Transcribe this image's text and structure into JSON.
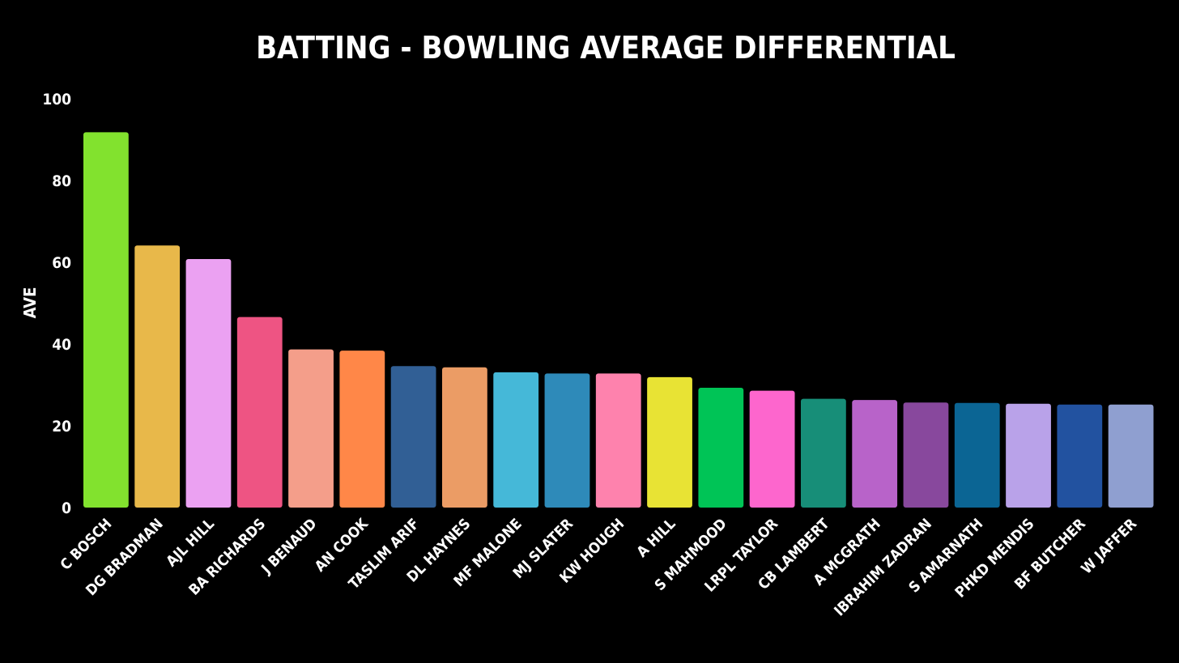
{
  "chart_data": {
    "type": "bar",
    "title": "BATTING - BOWLING AVERAGE DIFFERENTIAL",
    "xlabel": "",
    "ylabel": "AVE",
    "ylim": [
      0,
      100
    ],
    "yticks": [
      0,
      20,
      40,
      60,
      80,
      100
    ],
    "grid": false,
    "categories": [
      "C BOSCH",
      "DG BRADMAN",
      "AJL HILL",
      "BA RICHARDS",
      "J BENAUD",
      "AN COOK",
      "TASLIM ARIF",
      "DL HAYNES",
      "MF MALONE",
      "MJ SLATER",
      "KW HOUGH",
      "A HILL",
      "S MAHMOOD",
      "LRPL TAYLOR",
      "CB LAMBERT",
      "A MCGRATH",
      "IBRAHIM ZADRAN",
      "S AMARNATH",
      "PHKD MENDIS",
      "BF BUTCHER",
      "W JAFFER"
    ],
    "values": [
      91.8,
      64.1,
      60.8,
      46.6,
      38.7,
      38.4,
      34.6,
      34.3,
      33.1,
      32.8,
      32.8,
      31.9,
      29.3,
      28.6,
      26.6,
      26.3,
      25.7,
      25.6,
      25.4,
      25.2,
      25.2
    ],
    "colors": [
      "#82e22e",
      "#e8b84a",
      "#eba1f2",
      "#ee5483",
      "#f49e8a",
      "#ff8748",
      "#315f95",
      "#eb9c65",
      "#45b8d8",
      "#2e8ab9",
      "#fe82ad",
      "#e8e334",
      "#00c456",
      "#fd66cd",
      "#178e78",
      "#b863c9",
      "#88489d",
      "#0b6594",
      "#b9a2e9",
      "#2252a0",
      "#8f9fd0"
    ]
  }
}
